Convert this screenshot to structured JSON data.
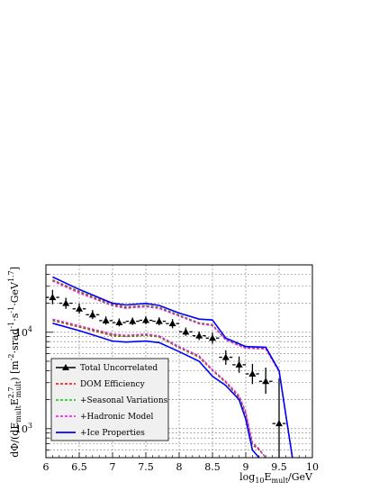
{
  "chart_data": {
    "type": "line",
    "title": "",
    "xlabel": {
      "prefix": "log",
      "sub1": "10",
      "mid": "E",
      "sub2": "mult",
      "suffix": "/GeV"
    },
    "ylabel": {
      "p1": "dΦ/(dE",
      "s1": "mult",
      "p2": "E",
      "sup2": "2.7",
      "sub2": "mult",
      "p3": ")  [m",
      "sup3": "-2",
      "p4": "·srad",
      "sup4": "-1",
      "p5": "·s",
      "sup5": "-1",
      "p6": "·GeV",
      "sup6": "1.7",
      "p7": "]"
    },
    "x_scale": "linear",
    "y_scale": "log",
    "xlim": [
      6,
      10
    ],
    "ylim": [
      500,
      50000
    ],
    "x_ticks": [
      {
        "value": 6,
        "label": "6"
      },
      {
        "value": 6.5,
        "label": "6.5"
      },
      {
        "value": 7,
        "label": "7"
      },
      {
        "value": 7.5,
        "label": "7.5"
      },
      {
        "value": 8,
        "label": "8"
      },
      {
        "value": 8.5,
        "label": "8.5"
      },
      {
        "value": 9,
        "label": "9"
      },
      {
        "value": 9.5,
        "label": "9.5"
      },
      {
        "value": 10,
        "label": "10"
      }
    ],
    "y_ticks": [
      {
        "value": 1000,
        "base": "10",
        "exp": "3"
      },
      {
        "value": 10000,
        "base": "10",
        "exp": "4"
      }
    ],
    "grid": true,
    "legend_position": "bottom-left",
    "data_points": {
      "name": "Total Uncorrelated",
      "x": [
        6.1,
        6.3,
        6.5,
        6.7,
        6.9,
        7.1,
        7.3,
        7.5,
        7.7,
        7.9,
        8.1,
        8.3,
        8.5,
        8.7,
        8.9,
        9.1,
        9.3,
        9.5
      ],
      "y": [
        23000,
        20000,
        17500,
        15200,
        13200,
        12600,
        13000,
        13300,
        13000,
        12300,
        10100,
        9200,
        8700,
        5500,
        4600,
        3700,
        3100,
        1130
      ],
      "y_lo": [
        19500,
        17500,
        15600,
        13700,
        12000,
        11500,
        11900,
        12100,
        11800,
        11000,
        9200,
        8300,
        7600,
        4600,
        3800,
        2900,
        2300,
        500
      ],
      "y_hi": [
        27500,
        22800,
        19800,
        17000,
        14600,
        13900,
        14200,
        14600,
        14300,
        13700,
        11200,
        10200,
        9900,
        6500,
        5600,
        4700,
        4300,
        3300
      ],
      "x_half_width": 0.1,
      "color": "#000000"
    },
    "series": [
      {
        "name": "DOM Efficiency",
        "style": "dashed",
        "color": "#ff0000",
        "upper_x": [
          6.1,
          6.5,
          7.0,
          7.2,
          7.5,
          7.7,
          8.0,
          8.3,
          8.5,
          8.7,
          9.0,
          9.3,
          9.5,
          9.7
        ],
        "upper_y": [
          35000,
          26500,
          19500,
          18300,
          19000,
          18200,
          15100,
          12500,
          12000,
          8400,
          6900,
          6800,
          3900,
          500
        ],
        "lower_x": [
          6.1,
          6.5,
          7.0,
          7.2,
          7.5,
          7.7,
          8.0,
          8.3,
          8.5,
          8.7,
          8.9,
          9.0,
          9.1,
          9.2,
          9.3
        ],
        "lower_y": [
          13200,
          11300,
          9200,
          9000,
          9300,
          8900,
          6900,
          5500,
          4000,
          3000,
          2100,
          1400,
          680,
          600,
          500
        ]
      },
      {
        "name": "+Seasonal Variations",
        "style": "dashed",
        "color": "#00cc00",
        "upper_x": [
          6.1,
          6.5,
          7.0,
          7.2,
          7.5,
          7.7,
          8.0,
          8.3,
          8.5,
          8.7,
          9.0,
          9.3,
          9.5,
          9.7
        ],
        "upper_y": [
          34500,
          26000,
          19200,
          18000,
          18800,
          18000,
          15000,
          12400,
          11900,
          8350,
          6850,
          6750,
          3900,
          500
        ],
        "lower_x": [
          6.1,
          6.5,
          7.0,
          7.2,
          7.5,
          7.7,
          8.0,
          8.3,
          8.5,
          8.7,
          8.9,
          9.0,
          9.1,
          9.2,
          9.3
        ],
        "lower_y": [
          13400,
          11500,
          9400,
          9100,
          9400,
          9000,
          7000,
          5600,
          4050,
          3050,
          2150,
          1450,
          700,
          610,
          500
        ]
      },
      {
        "name": "+Hadronic Model",
        "style": "dashed",
        "color": "#ff00ff",
        "upper_x": [
          6.1,
          6.5,
          7.0,
          7.2,
          7.5,
          7.7,
          8.0,
          8.3,
          8.5,
          8.7,
          9.0,
          9.3,
          9.5,
          9.7
        ],
        "upper_y": [
          34000,
          25500,
          18800,
          17700,
          18400,
          17600,
          14700,
          12200,
          11700,
          8300,
          6800,
          6700,
          3900,
          500
        ],
        "lower_x": [
          6.1,
          6.5,
          7.0,
          7.2,
          7.5,
          7.7,
          8.0,
          8.3,
          8.5,
          8.7,
          8.9,
          9.0,
          9.1,
          9.2,
          9.3
        ],
        "lower_y": [
          13700,
          11700,
          9600,
          9300,
          9600,
          9200,
          7100,
          5700,
          4100,
          3100,
          2200,
          1500,
          720,
          620,
          500
        ]
      },
      {
        "name": "+Ice Properties",
        "style": "solid",
        "color": "#0000ff",
        "upper_x": [
          6.1,
          6.5,
          7.0,
          7.2,
          7.5,
          7.7,
          8.0,
          8.3,
          8.5,
          8.7,
          9.0,
          9.3,
          9.5,
          9.7
        ],
        "upper_y": [
          37500,
          27800,
          20000,
          19200,
          19900,
          19000,
          15800,
          13700,
          13400,
          8700,
          7100,
          7000,
          4000,
          500
        ],
        "lower_x": [
          6.1,
          6.5,
          7.0,
          7.2,
          7.5,
          7.7,
          8.0,
          8.3,
          8.5,
          8.7,
          8.9,
          9.0,
          9.1,
          9.2
        ],
        "lower_y": [
          12400,
          10400,
          8100,
          7900,
          8100,
          7800,
          6300,
          5000,
          3500,
          2800,
          2000,
          1250,
          600,
          500
        ]
      }
    ]
  }
}
